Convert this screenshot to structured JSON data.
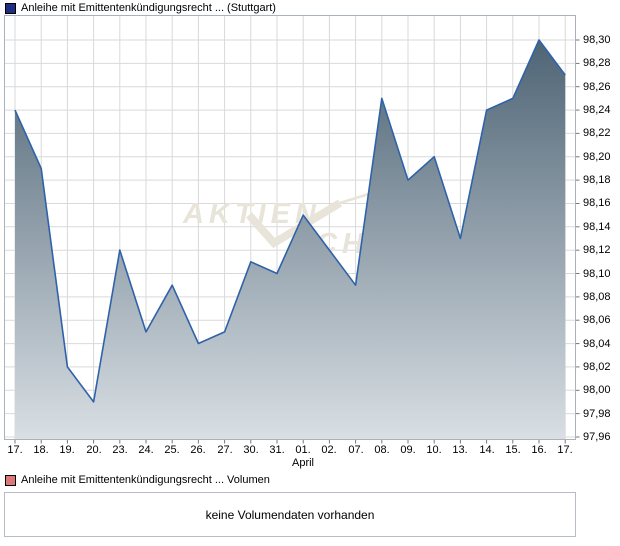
{
  "legend_top": {
    "label": "Anleihe mit Emittentenkündigungsrecht ... (Stuttgart)"
  },
  "volume_section": {
    "legend_label": "Anleihe mit Emittentenkündigungsrecht ... Volumen",
    "message": "keine Volumendaten vorhanden"
  },
  "watermark": {
    "left_text": "AKTIEN",
    "right_text": "CHECK",
    "icon": "check-swoosh"
  },
  "colors": {
    "line": "#2f62a8",
    "area_top": "#4e6475",
    "area_bottom": "#d9dfe4",
    "grid": "#d9d9d9",
    "plot_border": "#a9b2ba",
    "tick": "#777777",
    "legend_price": "#1f2e80",
    "legend_volume": "#dc7878",
    "watermark": "#e8e4d9"
  },
  "chart_data": {
    "type": "area",
    "title": "Anleihe mit Emittentenkündigungsrecht ... (Stuttgart)",
    "legend_position": "top-left",
    "grid": true,
    "categories": [
      "17.",
      "18.",
      "19.",
      "20.",
      "23.",
      "24.",
      "25.",
      "26.",
      "27.",
      "30.",
      "31.",
      "01.",
      "02.",
      "07.",
      "08.",
      "09.",
      "10.",
      "13.",
      "14.",
      "15.",
      "16.",
      "17."
    ],
    "values": [
      98.24,
      98.19,
      98.02,
      97.99,
      98.12,
      98.05,
      98.09,
      98.04,
      98.05,
      98.11,
      98.1,
      98.15,
      98.12,
      98.09,
      98.25,
      98.18,
      98.2,
      98.13,
      98.24,
      98.25,
      98.3,
      98.27
    ],
    "month_label": "April",
    "month_label_index": 11,
    "xlabel": "",
    "ylabel": "",
    "ylim": [
      97.955,
      98.32
    ],
    "y_tick_values": [
      98.3,
      98.28,
      98.26,
      98.24,
      98.22,
      98.2,
      98.18,
      98.16,
      98.14,
      98.12,
      98.1,
      98.08,
      98.06,
      98.04,
      98.02,
      98.0,
      97.98,
      97.96
    ],
    "y_tick_labels": [
      "98,30",
      "98,28",
      "98,26",
      "98,24",
      "98,22",
      "98,20",
      "98,18",
      "98,16",
      "98,14",
      "98,12",
      "98,10",
      "98,08",
      "98,06",
      "98,04",
      "98,02",
      "98,00",
      "97,98",
      "97,96"
    ]
  }
}
